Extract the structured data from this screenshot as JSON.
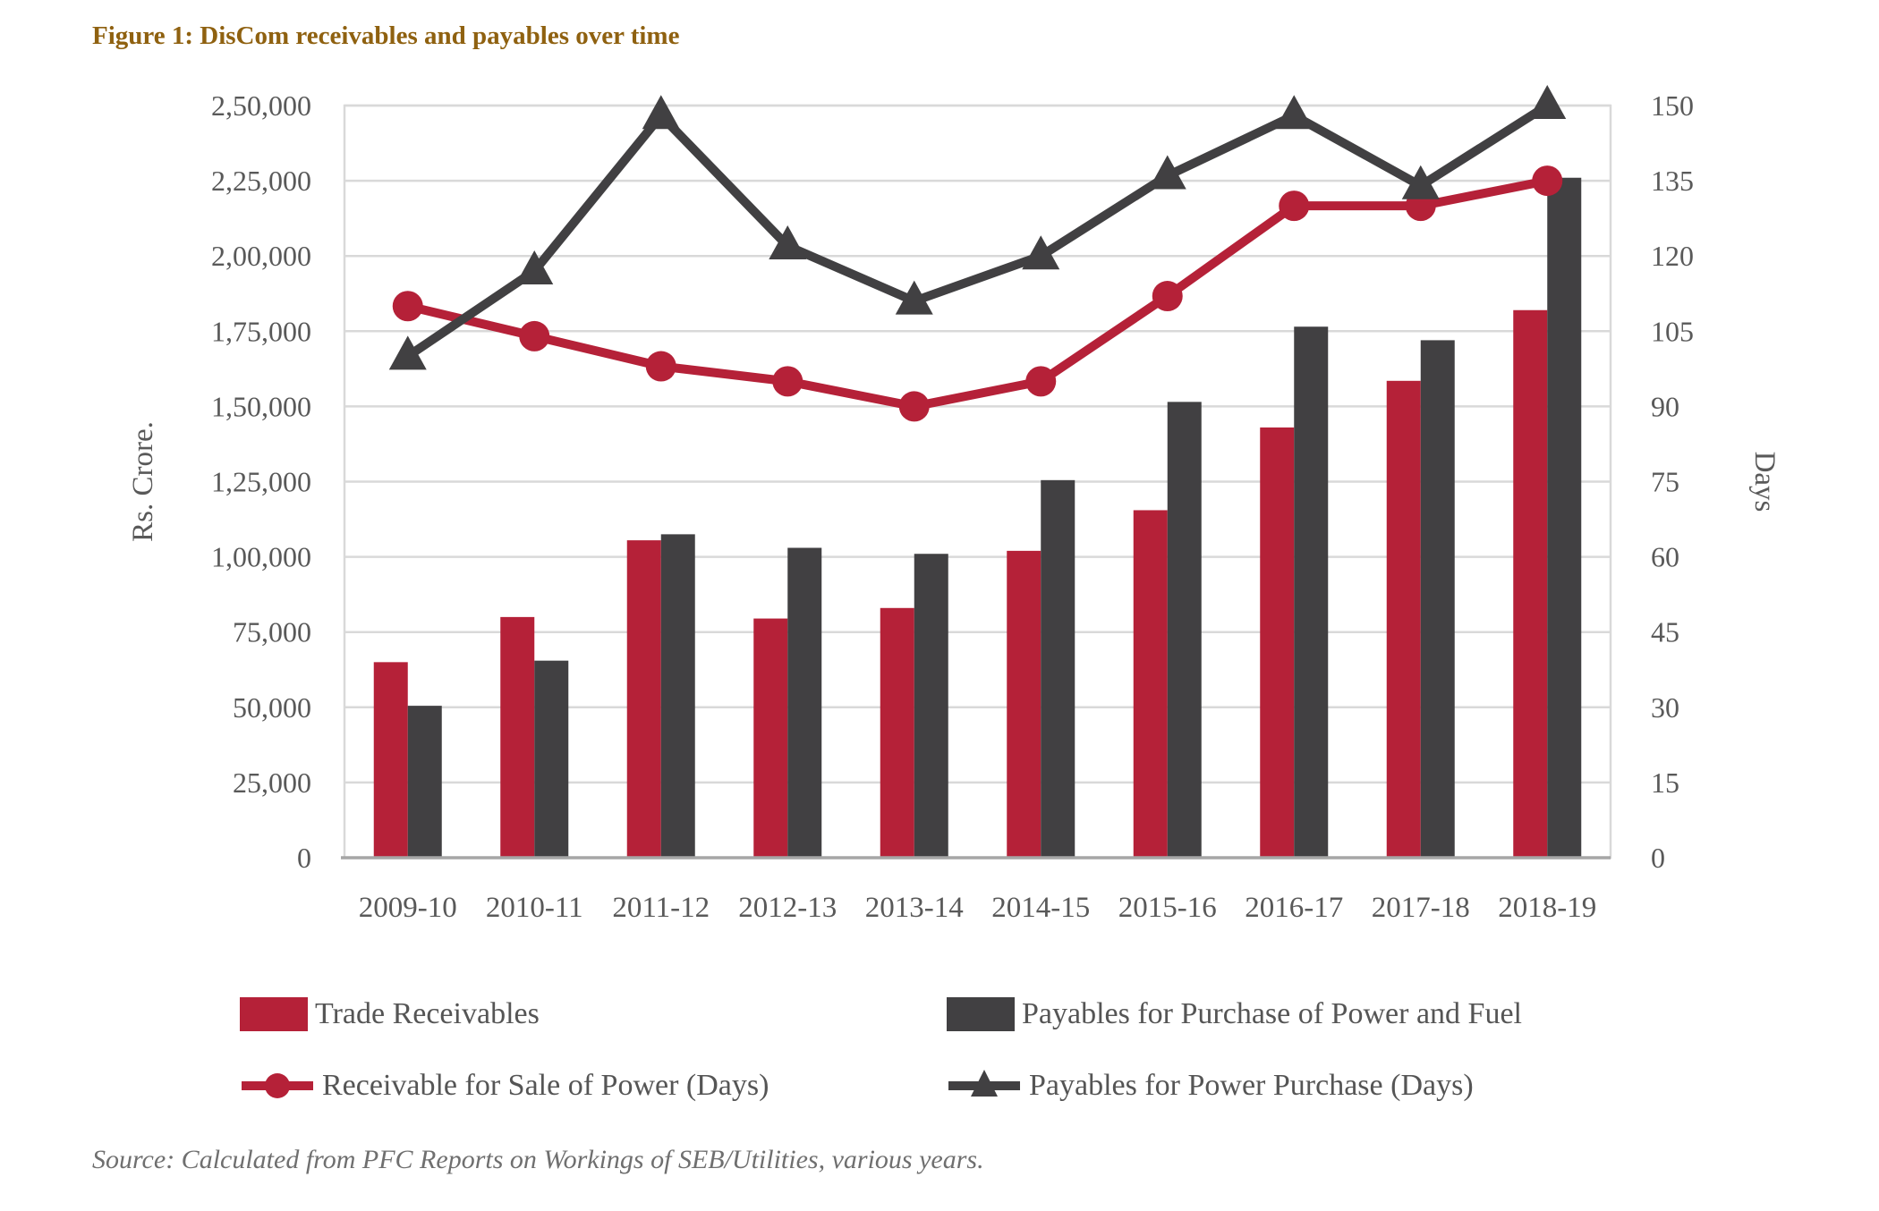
{
  "figure": {
    "title": "Figure 1: DisCom receivables and payables over time",
    "source": "Source: Calculated from PFC Reports on Workings of SEB/Utilities, various years."
  },
  "colors": {
    "accent_red": "#b52138",
    "accent_dark": "#414042",
    "grid": "#d9d9d9",
    "axis_line": "#a6a6a6",
    "text_gray": "#595959",
    "title_brown": "#8f6110"
  },
  "chart_data": {
    "type": "combo",
    "title": "Figure 1: DisCom receivables and payables over time",
    "categories": [
      "2009-10",
      "2010-11",
      "2011-12",
      "2012-13",
      "2013-14",
      "2014-15",
      "2015-16",
      "2016-17",
      "2017-18",
      "2018-19"
    ],
    "series": [
      {
        "name": "Trade Receivables",
        "type": "bar",
        "axis": "left",
        "color": "#b52138",
        "values": [
          65000,
          80000,
          105500,
          79500,
          83000,
          102000,
          115500,
          143000,
          158500,
          182000
        ]
      },
      {
        "name": "Payables for Purchase of Power and Fuel",
        "type": "bar",
        "axis": "left",
        "color": "#414042",
        "values": [
          50500,
          65500,
          107500,
          103000,
          101000,
          125500,
          151500,
          176500,
          172000,
          226000
        ]
      },
      {
        "name": "Receivable for Sale of Power (Days)",
        "type": "line",
        "marker": "circle",
        "axis": "right",
        "color": "#b52138",
        "values": [
          110,
          104,
          98,
          95,
          90,
          95,
          112,
          130,
          130,
          135
        ]
      },
      {
        "name": "Payables for Power Purchase (Days)",
        "type": "line",
        "marker": "triangle",
        "axis": "right",
        "color": "#414042",
        "values": [
          100,
          117,
          148,
          122,
          111,
          120,
          136,
          148,
          134,
          150
        ]
      }
    ],
    "y_left": {
      "label": "Rs. Crore.",
      "min": 0,
      "max": 250000,
      "tick_labels": [
        "0",
        "25,000",
        "50,000",
        "75,000",
        "1,00,000",
        "1,25,000",
        "1,50,000",
        "1,75,000",
        "2,00,000",
        "2,25,000",
        "2,50,000"
      ]
    },
    "y_right": {
      "label": "Days",
      "min": 0,
      "max": 150,
      "tick_labels": [
        "0",
        "15",
        "30",
        "45",
        "60",
        "75",
        "90",
        "105",
        "120",
        "135",
        "150"
      ]
    },
    "grid": true,
    "legend_position": "bottom"
  }
}
